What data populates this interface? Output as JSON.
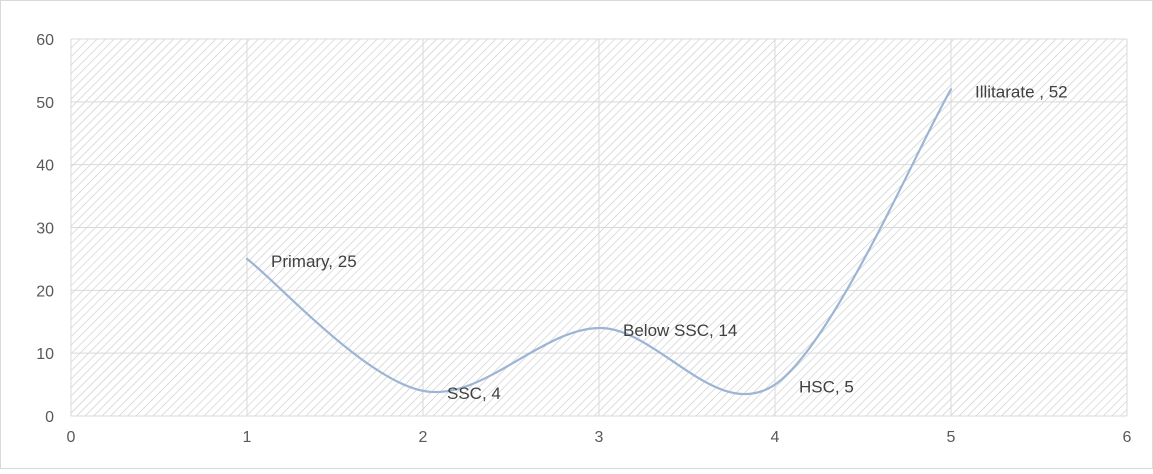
{
  "chart_data": {
    "type": "scatter",
    "title": "",
    "xlabel": "",
    "ylabel": "",
    "xlim": [
      0,
      6
    ],
    "ylim": [
      0,
      60
    ],
    "x_ticks": [
      0,
      1,
      2,
      3,
      4,
      5,
      6
    ],
    "y_ticks": [
      0,
      10,
      20,
      30,
      40,
      50,
      60
    ],
    "grid": true,
    "smooth_line": true,
    "series": [
      {
        "color": "#9db5d4",
        "points": [
          {
            "x": 1,
            "y": 25,
            "label": "Primary, 25"
          },
          {
            "x": 2,
            "y": 4,
            "label": "SSC, 4"
          },
          {
            "x": 3,
            "y": 14,
            "label": "Below SSC, 14"
          },
          {
            "x": 4,
            "y": 5,
            "label": "HSC, 5"
          },
          {
            "x": 5,
            "y": 52,
            "label": "Illitarate , 52"
          }
        ]
      }
    ],
    "colors": {
      "plot_hatch": "#c8c8c8",
      "gridline": "#d9d9d9",
      "axis_text": "#595959",
      "label_text": "#404040"
    }
  }
}
